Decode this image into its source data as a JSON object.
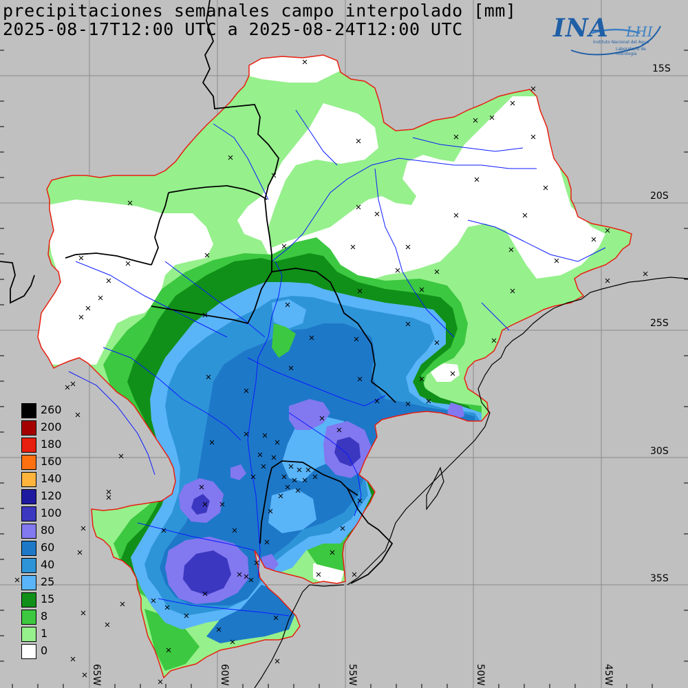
{
  "header": {
    "title_line1": "precipitaciones semanales campo interpolado [mm]",
    "title_line2": "2025-08-17T12:00 UTC a 2025-08-24T12:00 UTC"
  },
  "logo": {
    "main_text": "INA",
    "secondary_text": "LHI",
    "subtitle1": "Instituto Nacional del Agua",
    "subtitle2": "Laboratorio de Hidrología"
  },
  "map": {
    "lat_labels": [
      "15S",
      "20S",
      "25S",
      "30S",
      "35S"
    ],
    "lon_labels": [
      "65W",
      "60W",
      "55W",
      "50W",
      "45W"
    ]
  },
  "legend": {
    "items": [
      {
        "label": "260",
        "color": "#000000"
      },
      {
        "label": "200",
        "color": "#a50000"
      },
      {
        "label": "180",
        "color": "#e81e0e"
      },
      {
        "label": "160",
        "color": "#ff7010"
      },
      {
        "label": "140",
        "color": "#ffb43c"
      },
      {
        "label": "120",
        "color": "#1e1aa0"
      },
      {
        "label": "100",
        "color": "#3c37c0"
      },
      {
        "label": "80",
        "color": "#8278f0"
      },
      {
        "label": "60",
        "color": "#1e78c8"
      },
      {
        "label": "40",
        "color": "#2e94d8"
      },
      {
        "label": "25",
        "color": "#5ab4f8"
      },
      {
        "label": "15",
        "color": "#109018"
      },
      {
        "label": "8",
        "color": "#3cc840"
      },
      {
        "label": "1",
        "color": "#96f08c"
      },
      {
        "label": "0",
        "color": "#ffffff"
      }
    ]
  }
}
